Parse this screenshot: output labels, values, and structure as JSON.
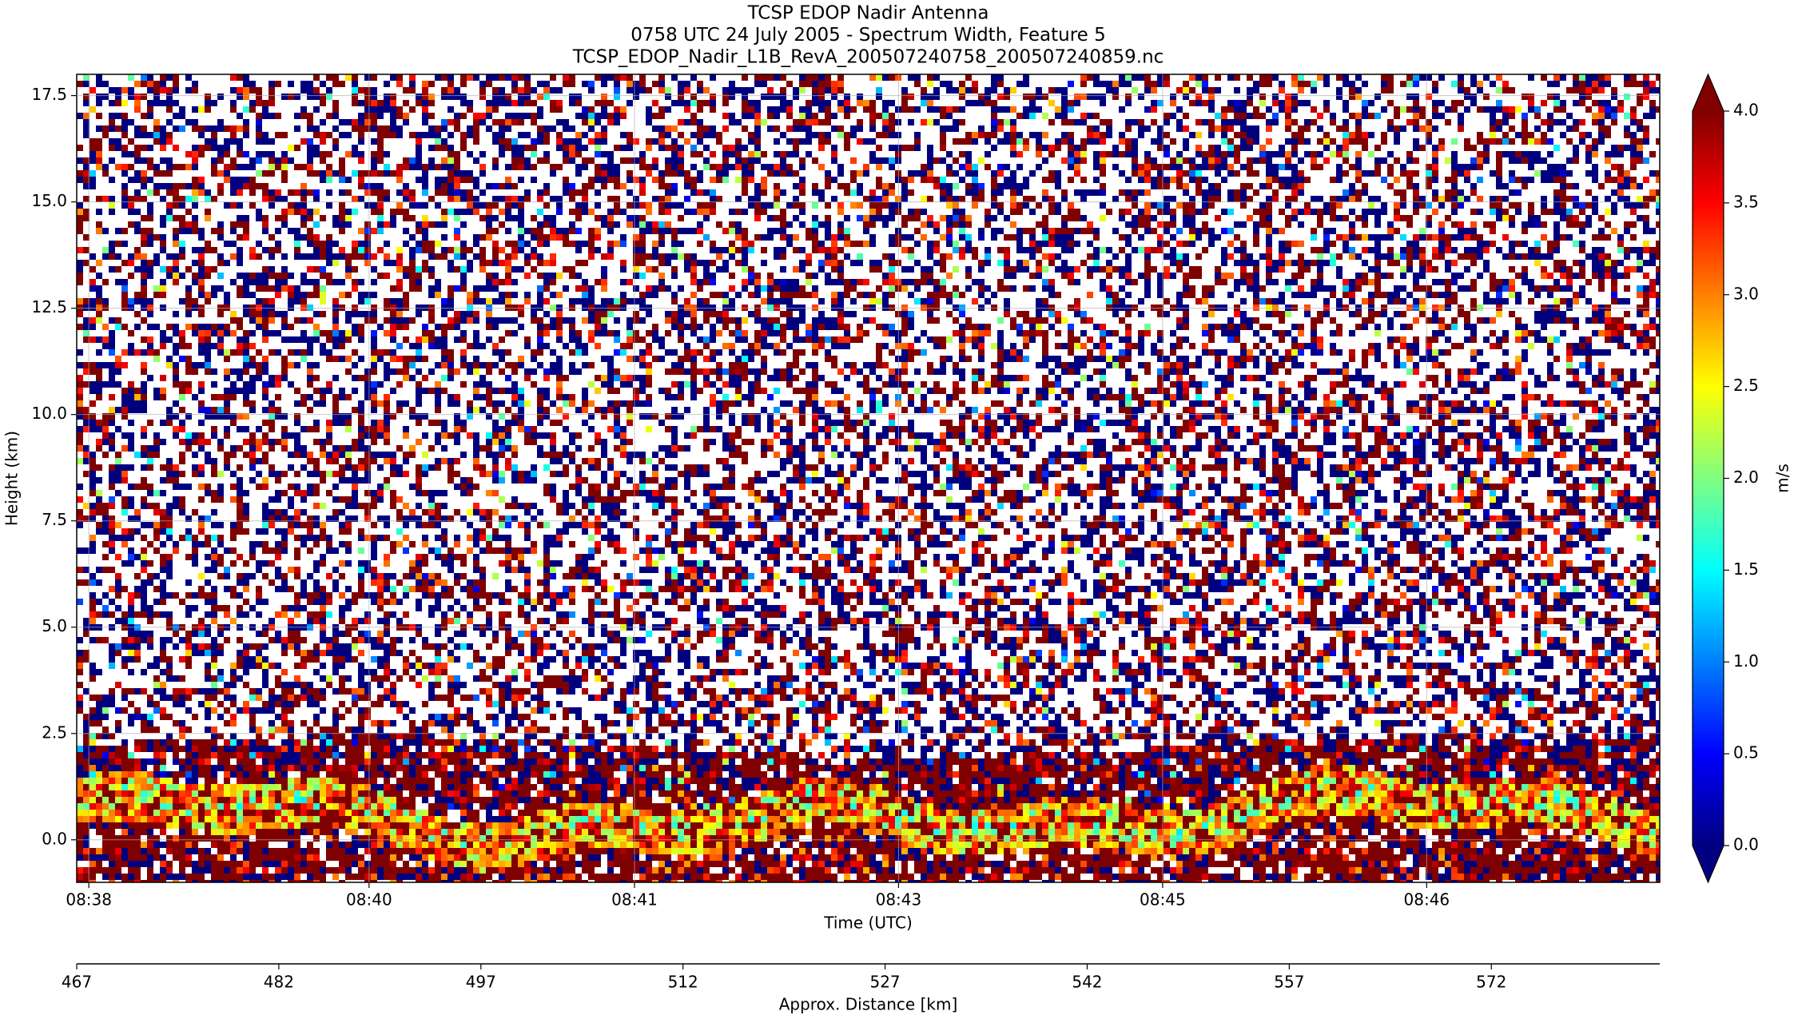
{
  "chart_data": {
    "type": "heatmap",
    "title_lines": [
      "TCSP EDOP Nadir Antenna",
      "0758 UTC 24 July 2005 - Spectrum Width, Feature 5",
      "TCSP_EDOP_Nadir_L1B_RevA_200507240758_200507240859.nc"
    ],
    "ylabel": "Height (km)",
    "xlabel": "Time (UTC)",
    "x2label": "Approx. Distance [km]",
    "ylim": [
      -1.0,
      18.0
    ],
    "yticks": [
      {
        "value": 0,
        "label": "0.0"
      },
      {
        "value": 2.5,
        "label": "2.5"
      },
      {
        "value": 5,
        "label": "5.0"
      },
      {
        "value": 7.5,
        "label": "7.5"
      },
      {
        "value": 10,
        "label": "10.0"
      },
      {
        "value": 12.5,
        "label": "12.5"
      },
      {
        "value": 15,
        "label": "15.0"
      },
      {
        "value": 17.5,
        "label": "17.5"
      }
    ],
    "xlim": [
      467,
      584.5
    ],
    "xticks": [
      {
        "value": 467.9,
        "label": "08:38"
      },
      {
        "value": 488.7,
        "label": "08:40"
      },
      {
        "value": 508.4,
        "label": "08:41"
      },
      {
        "value": 528.0,
        "label": "08:43"
      },
      {
        "value": 547.6,
        "label": "08:45"
      },
      {
        "value": 567.2,
        "label": "08:46"
      }
    ],
    "x2ticks": [
      467,
      482,
      497,
      512,
      527,
      542,
      557,
      572
    ],
    "colorbar_label": "m/s",
    "clim": [
      0,
      4
    ],
    "cticks": [
      {
        "value": 0,
        "label": "0.0"
      },
      {
        "value": 0.5,
        "label": "0.5"
      },
      {
        "value": 1,
        "label": "1.0"
      },
      {
        "value": 1.5,
        "label": "1.5"
      },
      {
        "value": 2,
        "label": "2.0"
      },
      {
        "value": 2.5,
        "label": "2.5"
      },
      {
        "value": 3,
        "label": "3.0"
      },
      {
        "value": 3.5,
        "label": "3.5"
      },
      {
        "value": 4,
        "label": "4.0"
      }
    ],
    "colormap": "jet",
    "grid": true
  }
}
